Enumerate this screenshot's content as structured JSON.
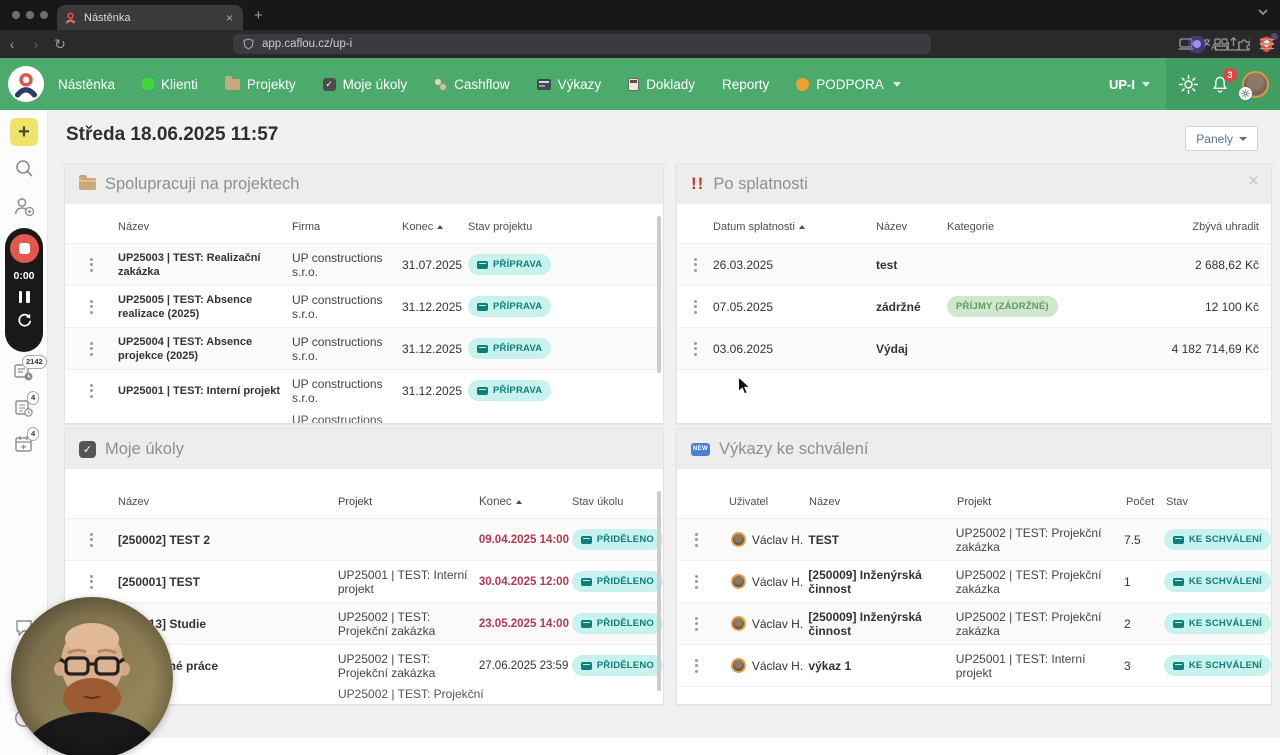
{
  "colors": {
    "nav_green": "#4BAA6C",
    "nav_green_dark": "#419E63",
    "brand_red": "#E25149",
    "badge_teal_bg": "#C8F2ED",
    "badge_teal_text": "#0F7D78",
    "badge_green_bg": "#CFE7CD",
    "badge_green_text": "#639A5E",
    "overdue_red": "#B13A4C",
    "notification_red": "#E0434A",
    "sidebar_plus_yellow": "#EFE469"
  },
  "browser": {
    "tab_title": "Nástěnka",
    "url": "app.caflou.cz/up-i"
  },
  "nav": {
    "items": [
      "Nástěnka",
      "Klienti",
      "Projekty",
      "Moje úkoly",
      "Cashflow",
      "Výkazy",
      "Doklady",
      "Reporty",
      "PODPORA"
    ],
    "account_label": "UP-I",
    "notifications": "3"
  },
  "sidebar": {
    "timer_value": "0:00",
    "badge_invoices": "2142",
    "badge_approvals": "4",
    "badge_planned": "4"
  },
  "header": {
    "date_title": "Středa 18.06.2025 11:57",
    "panels_button": "Panely"
  },
  "panels": {
    "projects": {
      "title": "Spolupracuji na projektech",
      "columns": [
        "Název",
        "Firma",
        "Konec",
        "Stav projektu"
      ],
      "rows": [
        {
          "name": "UP25003 | TEST: Realizační zakázka",
          "firm": "UP constructions s.r.o.",
          "end": "31.07.2025",
          "status": "PŘÍPRAVA"
        },
        {
          "name": "UP25005 | TEST: Absence realizace (2025)",
          "firm": "UP constructions s.r.o.",
          "end": "31.12.2025",
          "status": "PŘÍPRAVA"
        },
        {
          "name": "UP25004 | TEST: Absence projekce (2025)",
          "firm": "UP constructions s.r.o.",
          "end": "31.12.2025",
          "status": "PŘÍPRAVA"
        },
        {
          "name": "UP25001 | TEST: Interní projekt",
          "firm": "UP constructions s.r.o.",
          "end": "31.12.2025",
          "status": "PŘÍPRAVA"
        }
      ],
      "partial_row_firm": "UP constructions"
    },
    "overdue": {
      "title": "Po splatnosti",
      "columns": [
        "Datum splatnosti",
        "Název",
        "Kategorie",
        "Zbývá uhradit"
      ],
      "rows": [
        {
          "date": "26.03.2025",
          "name": "test",
          "category": "",
          "amount": "2 688,62 Kč"
        },
        {
          "date": "07.05.2025",
          "name": "zádržné",
          "category": "PŘÍJMY (ZÁDRŽNÉ)",
          "amount": "12 100 Kč"
        },
        {
          "date": "03.06.2025",
          "name": "Výdaj",
          "category": "",
          "amount": "4 182 714,69 Kč"
        }
      ]
    },
    "tasks": {
      "title": "Moje úkoly",
      "columns": [
        "Název",
        "Projekt",
        "Konec",
        "Stav úkolu"
      ],
      "rows": [
        {
          "name": "[250002] TEST 2",
          "project": "",
          "end": "09.04.2025 14:00",
          "overdue": true,
          "status": "PŘIDĚLENO"
        },
        {
          "name": "[250001] TEST",
          "project": "UP25001 | TEST: Interní projekt",
          "end": "30.04.2025 12:00",
          "overdue": true,
          "status": "PŘIDĚLENO"
        },
        {
          "name": "[250013] Studie",
          "project": "UP25002 | TEST: Projekční zakázka",
          "end": "23.05.2025 14:00",
          "overdue": true,
          "status": "PŘIDĚLENO"
        },
        {
          "name": "Průzkumné práce",
          "project": "UP25002 | TEST: Projekční zakázka",
          "end": "27.06.2025 23:59",
          "overdue": false,
          "status": "PŘIDĚLENO"
        }
      ],
      "partial_row_project": "UP25002 | TEST: Projekční"
    },
    "reports": {
      "title": "Výkazy ke schválení",
      "columns": [
        "Uživatel",
        "Název",
        "Projekt",
        "Počet",
        "Stav"
      ],
      "rows": [
        {
          "user": "Václav H.",
          "name": "TEST",
          "project": "UP25002 | TEST: Projekční zakázka",
          "count": "7.5",
          "status": "KE SCHVÁLENÍ"
        },
        {
          "user": "Václav H.",
          "name": "[250009] Inženýrská činnost",
          "project": "UP25002 | TEST: Projekční zakázka",
          "count": "1",
          "status": "KE SCHVÁLENÍ"
        },
        {
          "user": "Václav H.",
          "name": "[250009] Inženýrská činnost",
          "project": "UP25002 | TEST: Projekční zakázka",
          "count": "2",
          "status": "KE SCHVÁLENÍ"
        },
        {
          "user": "Václav H.",
          "name": "výkaz 1",
          "project": "UP25001 | TEST: Interní projekt",
          "count": "3",
          "status": "KE SCHVÁLENÍ"
        }
      ]
    }
  }
}
